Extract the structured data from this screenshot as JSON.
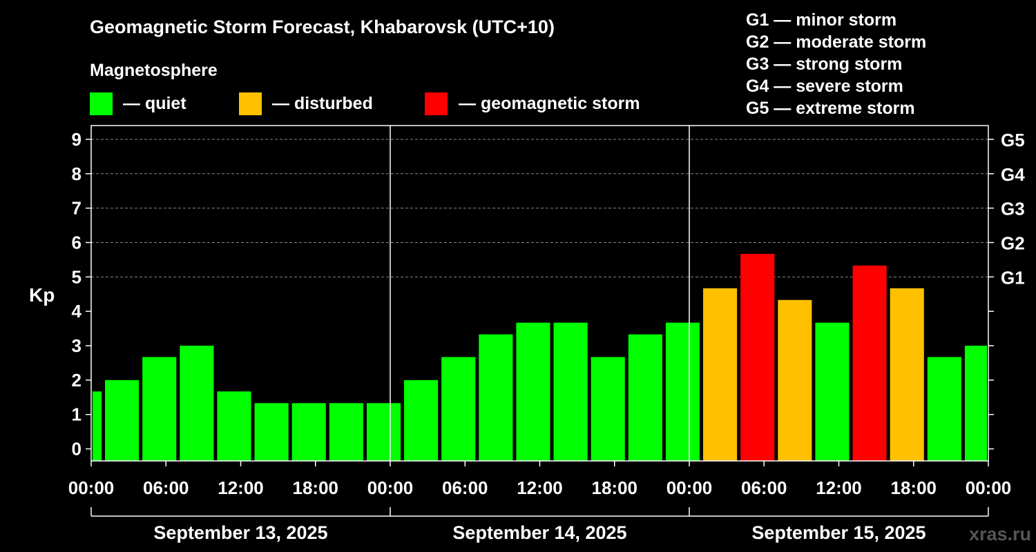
{
  "header": {
    "title": "Geomagnetic Storm Forecast, Khabarovsk (UTC+10)",
    "legend_heading": "Magnetosphere",
    "legend": [
      {
        "label": "— quiet",
        "color": "#00ff00"
      },
      {
        "label": "— disturbed",
        "color": "#ffc000"
      },
      {
        "label": "— geomagnetic storm",
        "color": "#ff0000"
      }
    ],
    "scale": [
      "G1 — minor storm",
      "G2 — moderate storm",
      "G3 — strong storm",
      "G4 — severe storm",
      "G5 — extreme storm"
    ]
  },
  "watermark": "xras.ru",
  "chart_data": {
    "type": "bar",
    "ylabel": "Kp",
    "ylim": [
      -0.35,
      9.4
    ],
    "yticks": [
      0,
      1,
      2,
      3,
      4,
      5,
      6,
      7,
      8,
      9
    ],
    "grid": "dashed horizontal at Kp 5-9",
    "right_axis": [
      {
        "kp": 5,
        "label": "G1"
      },
      {
        "kp": 6,
        "label": "G2"
      },
      {
        "kp": 7,
        "label": "G3"
      },
      {
        "kp": 8,
        "label": "G4"
      },
      {
        "kp": 9,
        "label": "G5"
      }
    ],
    "x_range_hours": [
      0,
      72
    ],
    "xticks": [
      {
        "h": 0,
        "label": "00:00"
      },
      {
        "h": 6,
        "label": "06:00"
      },
      {
        "h": 12,
        "label": "12:00"
      },
      {
        "h": 18,
        "label": "18:00"
      },
      {
        "h": 24,
        "label": "00:00"
      },
      {
        "h": 30,
        "label": "06:00"
      },
      {
        "h": 36,
        "label": "12:00"
      },
      {
        "h": 42,
        "label": "18:00"
      },
      {
        "h": 48,
        "label": "00:00"
      },
      {
        "h": 54,
        "label": "06:00"
      },
      {
        "h": 60,
        "label": "12:00"
      },
      {
        "h": 66,
        "label": "18:00"
      },
      {
        "h": 72,
        "label": "00:00"
      }
    ],
    "days": [
      {
        "label": "September 13, 2025",
        "start": 0,
        "end": 24
      },
      {
        "label": "September 14, 2025",
        "start": 24,
        "end": 48
      },
      {
        "label": "September 15, 2025",
        "start": 48,
        "end": 72
      }
    ],
    "colors": {
      "quiet": "#00ff00",
      "disturbed": "#ffc000",
      "storm": "#ff0000"
    },
    "bars": [
      {
        "start": 0,
        "end": 1,
        "kp": 1.67,
        "level": "quiet"
      },
      {
        "start": 1,
        "end": 4,
        "kp": 2.0,
        "level": "quiet"
      },
      {
        "start": 4,
        "end": 7,
        "kp": 2.67,
        "level": "quiet"
      },
      {
        "start": 7,
        "end": 10,
        "kp": 3.0,
        "level": "quiet"
      },
      {
        "start": 10,
        "end": 13,
        "kp": 1.67,
        "level": "quiet"
      },
      {
        "start": 13,
        "end": 16,
        "kp": 1.33,
        "level": "quiet"
      },
      {
        "start": 16,
        "end": 19,
        "kp": 1.33,
        "level": "quiet"
      },
      {
        "start": 19,
        "end": 22,
        "kp": 1.33,
        "level": "quiet"
      },
      {
        "start": 22,
        "end": 25,
        "kp": 1.33,
        "level": "quiet"
      },
      {
        "start": 25,
        "end": 28,
        "kp": 2.0,
        "level": "quiet"
      },
      {
        "start": 28,
        "end": 31,
        "kp": 2.67,
        "level": "quiet"
      },
      {
        "start": 31,
        "end": 34,
        "kp": 3.33,
        "level": "quiet"
      },
      {
        "start": 34,
        "end": 37,
        "kp": 3.67,
        "level": "quiet"
      },
      {
        "start": 37,
        "end": 40,
        "kp": 3.67,
        "level": "quiet"
      },
      {
        "start": 40,
        "end": 43,
        "kp": 2.67,
        "level": "quiet"
      },
      {
        "start": 43,
        "end": 46,
        "kp": 3.33,
        "level": "quiet"
      },
      {
        "start": 46,
        "end": 49,
        "kp": 3.67,
        "level": "quiet"
      },
      {
        "start": 49,
        "end": 52,
        "kp": 4.67,
        "level": "disturbed"
      },
      {
        "start": 52,
        "end": 55,
        "kp": 5.67,
        "level": "storm"
      },
      {
        "start": 55,
        "end": 58,
        "kp": 4.33,
        "level": "disturbed"
      },
      {
        "start": 58,
        "end": 61,
        "kp": 3.67,
        "level": "quiet"
      },
      {
        "start": 61,
        "end": 64,
        "kp": 5.33,
        "level": "storm"
      },
      {
        "start": 64,
        "end": 67,
        "kp": 4.67,
        "level": "disturbed"
      },
      {
        "start": 67,
        "end": 70,
        "kp": 2.67,
        "level": "quiet"
      },
      {
        "start": 70,
        "end": 72,
        "kp": 3.0,
        "level": "quiet"
      }
    ]
  }
}
